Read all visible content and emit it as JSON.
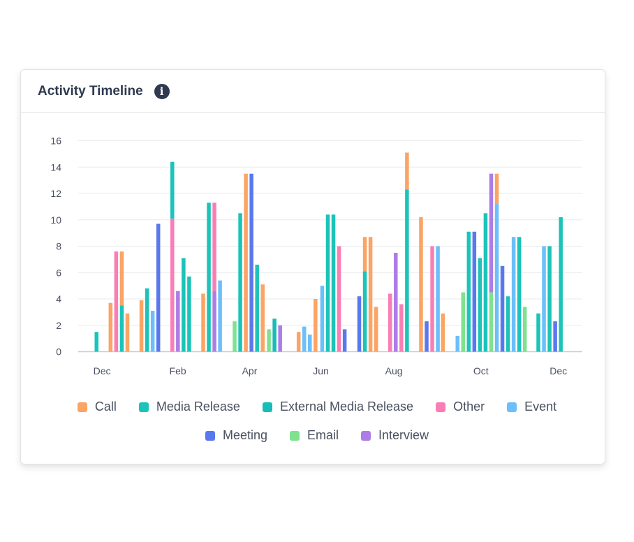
{
  "header": {
    "title": "Activity Timeline",
    "info_icon": "info-icon"
  },
  "colors": {
    "Call": "#fba465",
    "Media Release": "#1cc3b9",
    "External Media Release": "#17bdb6",
    "Other": "#f97eb6",
    "Event": "#6cbffb",
    "Meeting": "#5a78ee",
    "Email": "#7fe28e",
    "Interview": "#ad7de6"
  },
  "chart_data": {
    "type": "bar",
    "stacked": true,
    "title": "Activity Timeline",
    "xlabel": "",
    "ylabel": "",
    "ylim": [
      0,
      16
    ],
    "yticks": [
      "0",
      "2",
      "4",
      "6",
      "8",
      "10",
      "12",
      "14",
      "16"
    ],
    "grid": true,
    "legend_position": "bottom",
    "x_unit": "week index",
    "xlim": [
      0,
      86
    ],
    "xticks": [
      {
        "label": "Dec",
        "week": 1
      },
      {
        "label": "Feb",
        "week": 14.5
      },
      {
        "label": "Apr",
        "week": 27.3
      },
      {
        "label": "Jun",
        "week": 40
      },
      {
        "label": "Aug",
        "week": 53
      },
      {
        "label": "Oct",
        "week": 68.5
      },
      {
        "label": "Dec",
        "week": 82.3
      }
    ],
    "legend": [
      [
        "Call",
        "Media Release",
        "External Media Release",
        "Other",
        "Event"
      ],
      [
        "Meeting",
        "Email",
        "Interview"
      ]
    ],
    "bars": [
      {
        "week": 0,
        "segments": [
          [
            "Media Release",
            1.5
          ]
        ]
      },
      {
        "week": 2.5,
        "segments": [
          [
            "Call",
            3.7
          ]
        ]
      },
      {
        "week": 3.5,
        "segments": [
          [
            "Other",
            7.6
          ]
        ]
      },
      {
        "week": 4.5,
        "segments": [
          [
            "Media Release",
            3.5
          ],
          [
            "Call",
            4.1
          ]
        ]
      },
      {
        "week": 5.5,
        "segments": [
          [
            "Call",
            2.9
          ]
        ]
      },
      {
        "week": 8,
        "segments": [
          [
            "Call",
            3.9
          ]
        ]
      },
      {
        "week": 9,
        "segments": [
          [
            "Media Release",
            4.8
          ]
        ]
      },
      {
        "week": 10,
        "segments": [
          [
            "Event",
            3.1
          ]
        ]
      },
      {
        "week": 11,
        "segments": [
          [
            "Meeting",
            9.7
          ]
        ]
      },
      {
        "week": 13.5,
        "segments": [
          [
            "Other",
            10.1
          ],
          [
            "Media Release",
            4.3
          ]
        ]
      },
      {
        "week": 14.5,
        "segments": [
          [
            "Interview",
            4.6
          ]
        ]
      },
      {
        "week": 15.5,
        "segments": [
          [
            "Media Release",
            7.1
          ]
        ]
      },
      {
        "week": 16.5,
        "segments": [
          [
            "Media Release",
            5.7
          ]
        ]
      },
      {
        "week": 19,
        "segments": [
          [
            "Call",
            4.4
          ]
        ]
      },
      {
        "week": 20,
        "segments": [
          [
            "Media Release",
            11.3
          ]
        ]
      },
      {
        "week": 21,
        "segments": [
          [
            "Interview",
            4.6
          ],
          [
            "Other",
            6.7
          ]
        ]
      },
      {
        "week": 22,
        "segments": [
          [
            "Event",
            5.4
          ]
        ]
      },
      {
        "week": 24.6,
        "segments": [
          [
            "Email",
            2.3
          ]
        ]
      },
      {
        "week": 25.6,
        "segments": [
          [
            "Media Release",
            10.5
          ]
        ]
      },
      {
        "week": 26.6,
        "segments": [
          [
            "Call",
            13.5
          ]
        ]
      },
      {
        "week": 27.6,
        "segments": [
          [
            "Meeting",
            13.5
          ]
        ]
      },
      {
        "week": 28.6,
        "segments": [
          [
            "Media Release",
            6.6
          ]
        ]
      },
      {
        "week": 29.6,
        "segments": [
          [
            "Call",
            5.1
          ]
        ]
      },
      {
        "week": 30.7,
        "segments": [
          [
            "Email",
            1.7
          ]
        ]
      },
      {
        "week": 31.7,
        "segments": [
          [
            "External Media Release",
            2.5
          ]
        ]
      },
      {
        "week": 32.7,
        "segments": [
          [
            "Interview",
            2.0
          ]
        ]
      },
      {
        "week": 36,
        "segments": [
          [
            "Call",
            1.5
          ]
        ]
      },
      {
        "week": 37,
        "segments": [
          [
            "Event",
            1.9
          ]
        ]
      },
      {
        "week": 38,
        "segments": [
          [
            "Event",
            1.3
          ]
        ]
      },
      {
        "week": 39,
        "segments": [
          [
            "Call",
            4.0
          ]
        ]
      },
      {
        "week": 40.2,
        "segments": [
          [
            "Event",
            5.0
          ]
        ]
      },
      {
        "week": 41.2,
        "segments": [
          [
            "Media Release",
            10.4
          ]
        ]
      },
      {
        "week": 42.2,
        "segments": [
          [
            "Media Release",
            10.4
          ]
        ]
      },
      {
        "week": 43.2,
        "segments": [
          [
            "Other",
            8.0
          ]
        ]
      },
      {
        "week": 44.2,
        "segments": [
          [
            "Meeting",
            1.7
          ]
        ]
      },
      {
        "week": 46.8,
        "segments": [
          [
            "Meeting",
            4.2
          ]
        ]
      },
      {
        "week": 47.8,
        "segments": [
          [
            "Media Release",
            6.1
          ],
          [
            "Call",
            2.6
          ]
        ]
      },
      {
        "week": 48.8,
        "segments": [
          [
            "Call",
            8.7
          ]
        ]
      },
      {
        "week": 49.8,
        "segments": [
          [
            "Call",
            3.4
          ]
        ]
      },
      {
        "week": 52.3,
        "segments": [
          [
            "Other",
            4.4
          ]
        ]
      },
      {
        "week": 53.3,
        "segments": [
          [
            "Interview",
            7.5
          ]
        ]
      },
      {
        "week": 54.3,
        "segments": [
          [
            "Other",
            3.6
          ]
        ]
      },
      {
        "week": 55.3,
        "segments": [
          [
            "Media Release",
            12.3
          ],
          [
            "Call",
            2.8
          ]
        ]
      },
      {
        "week": 57.8,
        "segments": [
          [
            "Call",
            10.2
          ]
        ]
      },
      {
        "week": 58.8,
        "segments": [
          [
            "Meeting",
            2.3
          ]
        ]
      },
      {
        "week": 59.8,
        "segments": [
          [
            "Other",
            8.0
          ]
        ]
      },
      {
        "week": 60.8,
        "segments": [
          [
            "Event",
            8.0
          ]
        ]
      },
      {
        "week": 61.7,
        "segments": [
          [
            "Call",
            2.9
          ]
        ]
      },
      {
        "week": 64.3,
        "segments": [
          [
            "Event",
            1.2
          ]
        ]
      },
      {
        "week": 65.3,
        "segments": [
          [
            "Email",
            4.5
          ]
        ]
      },
      {
        "week": 66.3,
        "segments": [
          [
            "Media Release",
            9.1
          ]
        ]
      },
      {
        "week": 67.3,
        "segments": [
          [
            "Meeting",
            9.1
          ]
        ]
      },
      {
        "week": 68.3,
        "segments": [
          [
            "Media Release",
            7.1
          ]
        ]
      },
      {
        "week": 69.3,
        "segments": [
          [
            "Media Release",
            10.5
          ]
        ]
      },
      {
        "week": 70.3,
        "segments": [
          [
            "Email",
            4.5
          ],
          [
            "Interview",
            9.0
          ]
        ]
      },
      {
        "week": 71.3,
        "segments": [
          [
            "Event",
            11.2
          ],
          [
            "Call",
            2.3
          ]
        ]
      },
      {
        "week": 72.3,
        "segments": [
          [
            "Meeting",
            6.5
          ]
        ]
      },
      {
        "week": 73.3,
        "segments": [
          [
            "Media Release",
            4.2
          ]
        ]
      },
      {
        "week": 74.3,
        "segments": [
          [
            "Event",
            8.7
          ]
        ]
      },
      {
        "week": 75.3,
        "segments": [
          [
            "Media Release",
            8.7
          ]
        ]
      },
      {
        "week": 76.3,
        "segments": [
          [
            "Email",
            3.4
          ]
        ]
      },
      {
        "week": 78.7,
        "segments": [
          [
            "Media Release",
            2.9
          ]
        ]
      },
      {
        "week": 79.7,
        "segments": [
          [
            "Event",
            8.0
          ]
        ]
      },
      {
        "week": 80.7,
        "segments": [
          [
            "Media Release",
            8.0
          ]
        ]
      },
      {
        "week": 81.7,
        "segments": [
          [
            "Meeting",
            2.3
          ]
        ]
      },
      {
        "week": 82.7,
        "segments": [
          [
            "Media Release",
            10.2
          ]
        ]
      }
    ]
  }
}
